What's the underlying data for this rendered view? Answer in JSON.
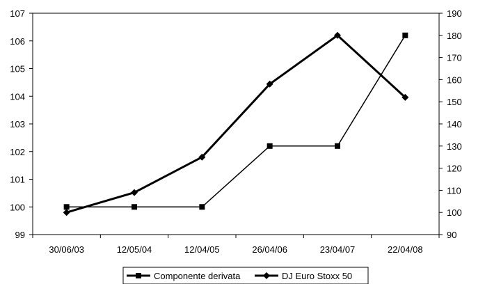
{
  "chart_data": {
    "type": "line",
    "categories": [
      "30/06/03",
      "12/05/04",
      "12/04/05",
      "26/04/06",
      "23/04/07",
      "22/04/08"
    ],
    "y_left": {
      "min": 99,
      "max": 107,
      "ticks": [
        "99",
        "100",
        "101",
        "102",
        "103",
        "104",
        "105",
        "106",
        "107"
      ]
    },
    "y_right": {
      "min": 90,
      "max": 190,
      "ticks": [
        "90",
        "100",
        "110",
        "120",
        "130",
        "140",
        "150",
        "160",
        "170",
        "180",
        "190"
      ]
    },
    "series": [
      {
        "name": "Componente derivata",
        "axis": "left",
        "marker": "square",
        "values": [
          100,
          100,
          100,
          102.2,
          102.2,
          106.2
        ]
      },
      {
        "name": "DJ Euro Stoxx 50",
        "axis": "right",
        "marker": "diamond",
        "values": [
          100,
          109,
          125,
          158,
          180,
          152
        ]
      }
    ],
    "legend_position": "bottom",
    "grid": false
  }
}
